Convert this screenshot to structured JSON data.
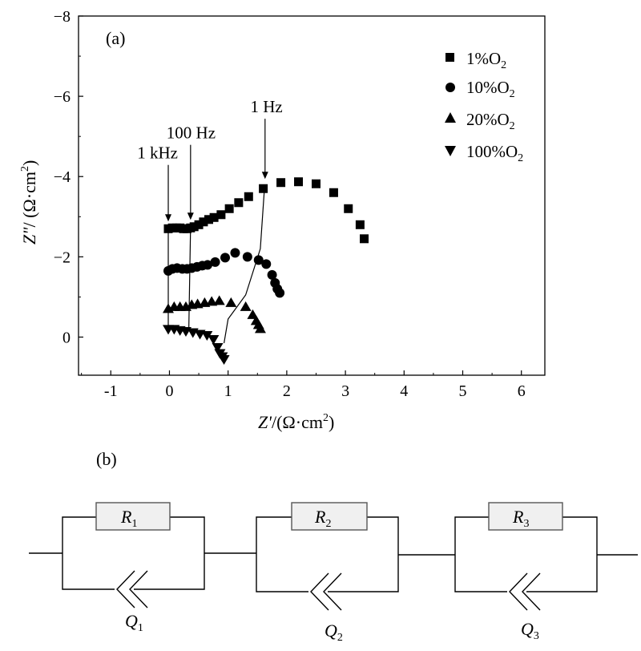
{
  "chart_data": {
    "type": "scatter",
    "panel_label": "(a)",
    "xlabel": {
      "var": "Z'",
      "unit_open": "/(Ω·cm",
      "sup": "2",
      "unit_close": ")"
    },
    "ylabel": {
      "var": "Z\"",
      "unit_open": "/ (Ω·cm",
      "sup": "2",
      "unit_close": ")"
    },
    "xlim": [
      -1.55,
      6.4
    ],
    "ylim": [
      0.95,
      -8
    ],
    "xticks": [
      {
        "v": -1,
        "label": "-1"
      },
      {
        "v": 0,
        "label": "0"
      },
      {
        "v": 1,
        "label": "1"
      },
      {
        "v": 2,
        "label": "2"
      },
      {
        "v": 3,
        "label": "3"
      },
      {
        "v": 4,
        "label": "4"
      },
      {
        "v": 5,
        "label": "5"
      },
      {
        "v": 6,
        "label": "6"
      }
    ],
    "yticks": [
      {
        "v": 0,
        "label": "0"
      },
      {
        "v": -2,
        "label": "−2"
      },
      {
        "v": -4,
        "label": "−4"
      },
      {
        "v": -6,
        "label": "−6"
      },
      {
        "v": -8,
        "label": "−8"
      }
    ],
    "legend_position": "top-right",
    "series": [
      {
        "name": "1%O",
        "sub": "2",
        "marker": "square",
        "x": [
          -0.02,
          0.05,
          0.12,
          0.18,
          0.24,
          0.3,
          0.36,
          0.42,
          0.5,
          0.58,
          0.67,
          0.76,
          0.88,
          1.02,
          1.18,
          1.35,
          1.6,
          1.9,
          2.2,
          2.5,
          2.8,
          3.05,
          3.25,
          3.32
        ],
        "y": [
          -2.7,
          -2.72,
          -2.72,
          -2.72,
          -2.7,
          -2.7,
          -2.72,
          -2.75,
          -2.8,
          -2.87,
          -2.93,
          -2.98,
          -3.05,
          -3.2,
          -3.35,
          -3.5,
          -3.7,
          -3.85,
          -3.87,
          -3.82,
          -3.6,
          -3.2,
          -2.8,
          -2.45
        ]
      },
      {
        "name": "10%O",
        "sub": "2",
        "marker": "circle",
        "x": [
          -0.02,
          0.05,
          0.13,
          0.22,
          0.3,
          0.38,
          0.47,
          0.56,
          0.65,
          0.78,
          0.95,
          1.12,
          1.33,
          1.52,
          1.65,
          1.75,
          1.8,
          1.84,
          1.88
        ],
        "y": [
          -1.65,
          -1.7,
          -1.72,
          -1.7,
          -1.7,
          -1.72,
          -1.75,
          -1.78,
          -1.8,
          -1.87,
          -1.98,
          -2.1,
          -2.0,
          -1.92,
          -1.82,
          -1.55,
          -1.35,
          -1.2,
          -1.1
        ]
      },
      {
        "name": "20%O",
        "sub": "2",
        "marker": "triangle-up",
        "x": [
          -0.02,
          0.08,
          0.18,
          0.28,
          0.38,
          0.48,
          0.6,
          0.72,
          0.85,
          1.05,
          1.3,
          1.42,
          1.48,
          1.52,
          1.55
        ],
        "y": [
          -0.7,
          -0.75,
          -0.75,
          -0.75,
          -0.8,
          -0.82,
          -0.85,
          -0.88,
          -0.9,
          -0.85,
          -0.75,
          -0.55,
          -0.4,
          -0.3,
          -0.2
        ]
      },
      {
        "name": "100%O",
        "sub": "2",
        "marker": "triangle-down",
        "x": [
          -0.02,
          0.08,
          0.18,
          0.28,
          0.4,
          0.52,
          0.64,
          0.75,
          0.82,
          0.86,
          0.9,
          0.93
        ],
        "y": [
          -0.2,
          -0.2,
          -0.17,
          -0.15,
          -0.12,
          -0.08,
          -0.05,
          0.05,
          0.25,
          0.4,
          0.48,
          0.55
        ]
      }
    ],
    "guide_lines": [
      {
        "x": [
          -0.02,
          -0.02
        ],
        "y": [
          -2.7,
          -0.2
        ]
      },
      {
        "x": [
          0.36,
          0.33
        ],
        "y": [
          -2.72,
          -0.15
        ]
      },
      {
        "x": [
          1.62,
          1.55,
          1.3,
          1.0,
          0.93
        ],
        "y": [
          -3.72,
          -2.2,
          -1.05,
          -0.45,
          0.15
        ]
      }
    ],
    "annotations": [
      {
        "text": "1 kHz",
        "at_x": -0.02,
        "at_y": -2.72,
        "label_x": -0.55,
        "label_y": -4.45
      },
      {
        "text": "100 Hz",
        "at_x": 0.36,
        "at_y": -2.76,
        "label_x": -0.05,
        "label_y": -4.95
      },
      {
        "text": "1 Hz",
        "at_x": 1.63,
        "at_y": -3.78,
        "label_x": 1.38,
        "label_y": -5.6
      }
    ]
  },
  "circuit": {
    "panel_label": "(b)",
    "elements": [
      {
        "resistor": "R",
        "resistor_sub": "1",
        "cpe": "Q",
        "cpe_sub": "1"
      },
      {
        "resistor": "R",
        "resistor_sub": "2",
        "cpe": "Q",
        "cpe_sub": "2"
      },
      {
        "resistor": "R",
        "resistor_sub": "3",
        "cpe": "Q",
        "cpe_sub": "3"
      }
    ]
  }
}
